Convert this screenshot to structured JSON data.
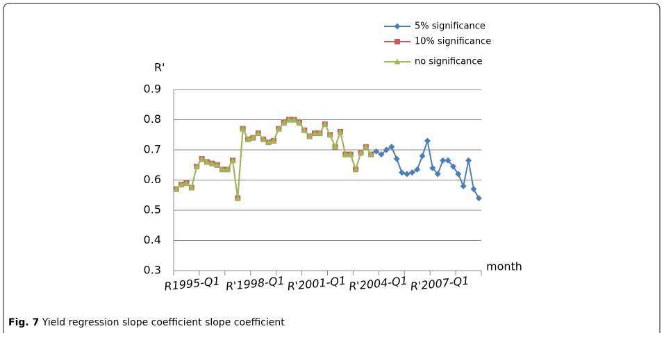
{
  "chart_data": {
    "type": "line",
    "y_label": "R'",
    "x_label": "month",
    "categories": [
      "R1995-Q1",
      null,
      null,
      null,
      null,
      null,
      null,
      null,
      null,
      null,
      null,
      null,
      "R'1998-Q1",
      null,
      null,
      null,
      null,
      null,
      null,
      null,
      null,
      null,
      null,
      null,
      "R'2001-Q1",
      null,
      null,
      null,
      null,
      null,
      null,
      null,
      null,
      null,
      null,
      null,
      "R'2004-Q1",
      null,
      null,
      null,
      null,
      null,
      null,
      null,
      null,
      null,
      null,
      null,
      "R'2007-Q1",
      null,
      null,
      null,
      null,
      null,
      null,
      null,
      null,
      null,
      null,
      null
    ],
    "series": [
      {
        "name": "5% significance",
        "color": "#4a7ebb",
        "marker": "diamond",
        "values": [
          null,
          null,
          null,
          null,
          null,
          null,
          null,
          null,
          null,
          null,
          null,
          null,
          null,
          null,
          null,
          null,
          null,
          null,
          null,
          null,
          null,
          null,
          null,
          null,
          null,
          null,
          null,
          null,
          null,
          null,
          null,
          null,
          null,
          null,
          null,
          null,
          null,
          null,
          null,
          0.695,
          0.685,
          0.7,
          0.71,
          0.67,
          0.625,
          0.62,
          0.625,
          0.635,
          0.68,
          0.73,
          0.64,
          0.62,
          0.665,
          0.665,
          0.645,
          0.62,
          0.58,
          0.665,
          0.57,
          0.54
        ]
      },
      {
        "name": "10% significance",
        "color": "#d05a58",
        "marker": "square",
        "values": [
          0.57,
          0.585,
          0.59,
          0.575,
          0.645,
          0.67,
          0.66,
          0.655,
          0.65,
          0.635,
          0.635,
          0.665,
          0.54,
          0.77,
          0.735,
          0.74,
          0.755,
          0.735,
          0.725,
          0.73,
          0.77,
          0.79,
          0.8,
          0.8,
          0.79,
          0.765,
          0.745,
          0.755,
          0.755,
          0.785,
          0.75,
          0.71,
          0.76,
          0.685,
          0.685,
          0.635,
          0.69,
          0.71,
          0.685,
          null,
          null,
          null,
          null,
          null,
          null,
          null,
          null,
          null,
          null,
          null,
          null,
          null,
          null,
          null,
          null,
          null,
          null,
          null,
          null,
          null
        ]
      },
      {
        "name": "no significance",
        "color": "#9bbb59",
        "marker": "triangle",
        "values": [
          0.57,
          0.585,
          0.59,
          0.575,
          0.645,
          0.67,
          0.66,
          0.655,
          0.65,
          0.635,
          0.635,
          0.665,
          0.54,
          0.77,
          0.735,
          0.74,
          0.755,
          0.735,
          0.725,
          0.73,
          0.77,
          0.79,
          0.8,
          0.8,
          0.79,
          0.765,
          0.745,
          0.755,
          0.755,
          0.785,
          0.75,
          0.71,
          0.76,
          0.685,
          0.685,
          0.635,
          0.69,
          0.71,
          0.685,
          null,
          null,
          null,
          null,
          null,
          null,
          null,
          null,
          null,
          null,
          null,
          null,
          null,
          null,
          null,
          null,
          null,
          null,
          null,
          null,
          null
        ]
      }
    ],
    "ylim": [
      0.3,
      0.9
    ],
    "yticks": [
      0.3,
      0.4,
      0.5,
      0.6,
      0.7,
      0.8,
      0.9
    ],
    "grid": true
  },
  "caption": {
    "label": "Fig. 7",
    "text": "Yield regression slope coefficient slope coefficient"
  }
}
